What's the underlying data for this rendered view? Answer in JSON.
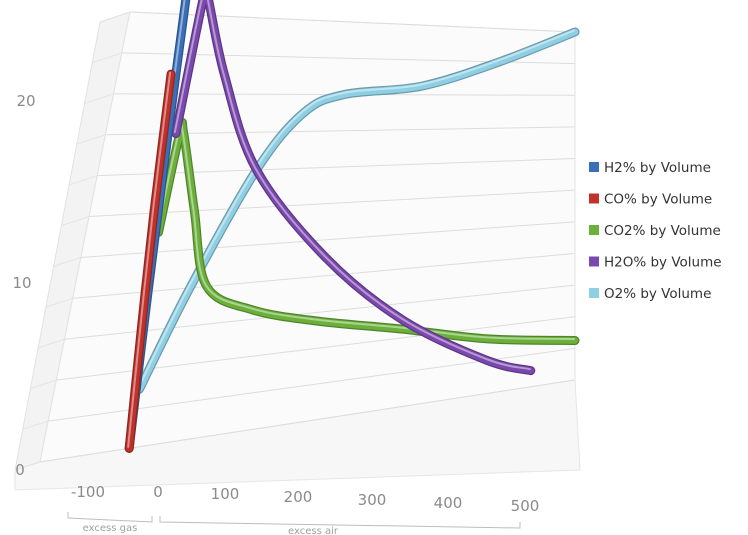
{
  "chart_data": {
    "type": "line",
    "view": "3d-perspective",
    "x_ticks": [
      "-100",
      "0",
      "100",
      "200",
      "300",
      "400",
      "500"
    ],
    "y_ticks": [
      "0",
      "10",
      "20"
    ],
    "xlim": [
      -100,
      500
    ],
    "ylim": [
      0,
      22
    ],
    "grid": true,
    "legend_position": "right",
    "range_labels": {
      "excess_gas": "excess gas",
      "excess_air": "excess air"
    },
    "series": [
      {
        "name": "H2% by Volume",
        "color": "#3a6fb8",
        "x": [
          0,
          -10,
          -20,
          -30
        ],
        "y": [
          0,
          8,
          16,
          24
        ]
      },
      {
        "name": "CO% by Volume",
        "color": "#c0312a",
        "x": [
          0,
          -10,
          -20,
          -30
        ],
        "y": [
          0,
          6,
          12,
          19
        ]
      },
      {
        "name": "CO2% by Volume",
        "color": "#6ab03a",
        "x": [
          -10,
          -5,
          0,
          30,
          60,
          120,
          200,
          300,
          400,
          500
        ],
        "y": [
          11,
          16,
          16,
          12,
          8,
          6.5,
          5.5,
          4.5,
          3.3,
          2.5
        ]
      },
      {
        "name": "H2O% by Volume",
        "color": "#7b48ae",
        "x": [
          -10,
          -5,
          0,
          40,
          100,
          200,
          300,
          400,
          450
        ],
        "y": [
          16,
          23,
          23,
          19,
          14,
          9,
          5,
          2,
          1
        ]
      },
      {
        "name": "O2% by Volume",
        "color": "#8fcfe4",
        "x": [
          0,
          40,
          100,
          150,
          200,
          300,
          400,
          500
        ],
        "y": [
          3,
          8,
          14,
          17,
          18,
          18.5,
          20,
          22
        ]
      }
    ]
  }
}
